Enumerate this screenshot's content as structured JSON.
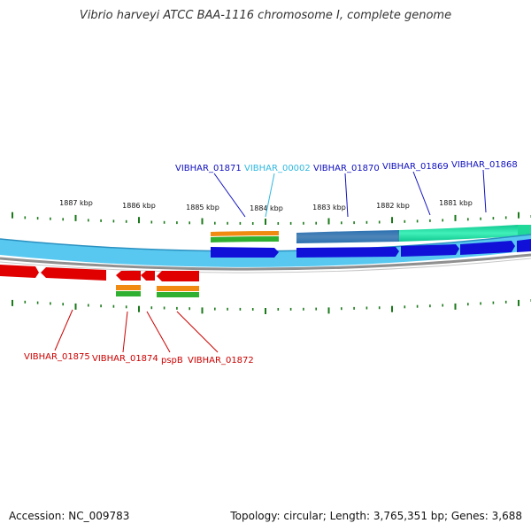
{
  "title": "Vibrio harveyi ATCC BAA-1116 chromosome I, complete genome",
  "accession": "Accession: NC_009783",
  "summary": "Topology: circular; Length: 3,765,351 bp; Genes: 3,688",
  "colors": {
    "forward_gene": "#1010d8",
    "reverse_gene": "#e00000",
    "forward_backbone": "#58c8f0",
    "reverse_backbone": "#909090",
    "cds_orange": "#f08a10",
    "cds_green": "#30b030",
    "tick": "#1a7a1a",
    "label_blue": "#1010c0",
    "label_cyan": "#30b8e0",
    "label_red": "#cc0000"
  },
  "kbp_labels": [
    "1887 kbp",
    "1886 kbp",
    "1885 kbp",
    "1884 kbp",
    "1883 kbp",
    "1882 kbp",
    "1881 kbp"
  ],
  "top_labels": [
    {
      "text": "VIBHAR_01871",
      "color": "#1010c0"
    },
    {
      "text": "VIBHAR_00002",
      "color": "#30b8e0"
    },
    {
      "text": "VIBHAR_01870",
      "color": "#1010c0"
    },
    {
      "text": "VIBHAR_01869",
      "color": "#1010c0"
    },
    {
      "text": "VIBHAR_01868",
      "color": "#1010c0"
    }
  ],
  "bottom_labels": [
    {
      "text": "VIBHAR_01875",
      "color": "#cc0000"
    },
    {
      "text": "VIBHAR_01874",
      "color": "#cc0000"
    },
    {
      "text": "pspB",
      "color": "#cc0000"
    },
    {
      "text": "VIBHAR_01872",
      "color": "#cc0000"
    }
  ]
}
